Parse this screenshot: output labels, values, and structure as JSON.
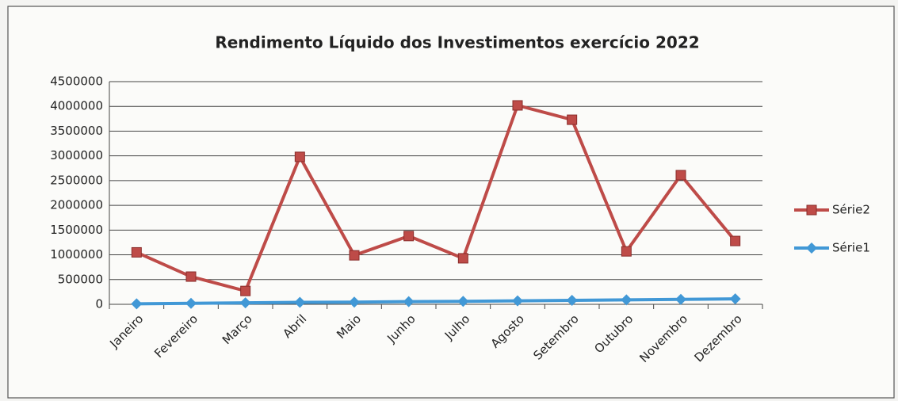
{
  "chart_data": {
    "type": "line",
    "title": "Rendimento Líquido dos Investimentos exercício 2022",
    "categories": [
      "Janeiro",
      "Fevereiro",
      "Março",
      "Abril",
      "Maio",
      "Junho",
      "Julho",
      "Agosto",
      "Setembro",
      "Outubro",
      "Novembro",
      "Dezembro"
    ],
    "series": [
      {
        "name": "Série2",
        "color": "#be4b48",
        "marker": "square",
        "values": [
          1050000,
          560000,
          270000,
          2980000,
          990000,
          1380000,
          930000,
          4020000,
          3730000,
          1070000,
          2610000,
          1280000
        ]
      },
      {
        "name": "Série1",
        "color": "#4198d6",
        "marker": "diamond",
        "values": [
          10000,
          20000,
          30000,
          40000,
          45000,
          55000,
          60000,
          70000,
          80000,
          90000,
          100000,
          110000
        ]
      }
    ],
    "ylim": [
      0,
      4500000
    ],
    "yticks": [
      0,
      500000,
      1000000,
      1500000,
      2000000,
      2500000,
      3000000,
      3500000,
      4000000,
      4500000
    ],
    "grid": true,
    "legend": "right"
  }
}
